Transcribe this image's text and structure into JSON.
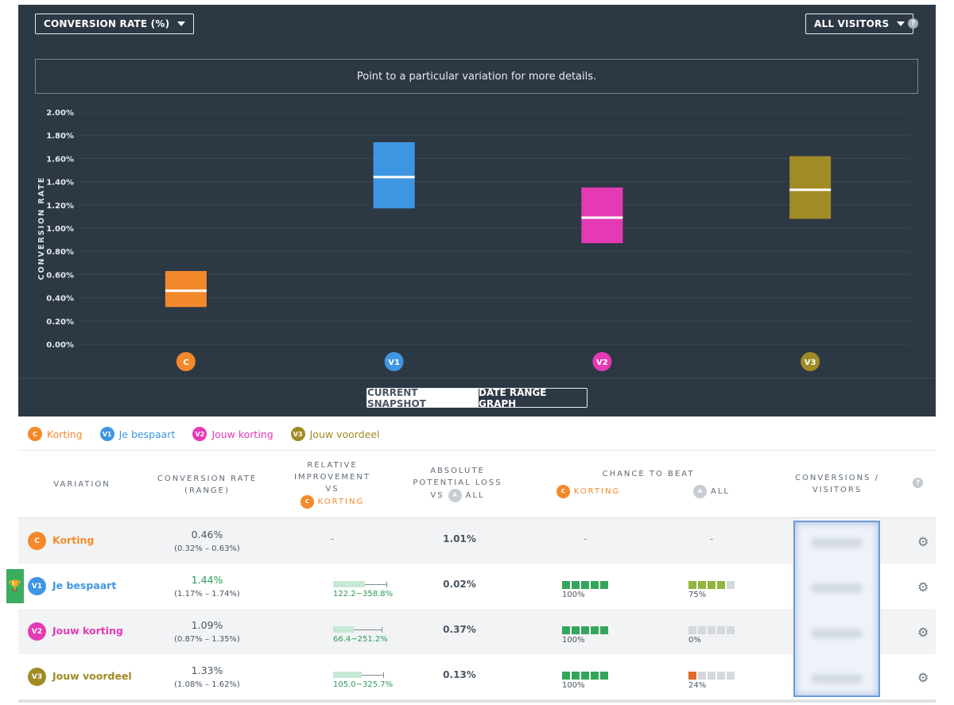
{
  "header": {
    "metric_dropdown": "CONVERSION RATE (%)",
    "segment_dropdown": "ALL VISITORS",
    "help_glyph": "?",
    "info": "Point to a particular variation for more details."
  },
  "chart_data": {
    "type": "range",
    "ylabel": "CONVERSION RATE",
    "ylim": [
      0,
      2.0
    ],
    "yticks": [
      "0.00%",
      "0.20%",
      "0.40%",
      "0.60%",
      "0.80%",
      "1.00%",
      "1.20%",
      "1.40%",
      "1.60%",
      "1.80%",
      "2.00%"
    ],
    "categories": [
      "C",
      "V1",
      "V2",
      "V3"
    ],
    "series": [
      {
        "label": "C",
        "low": 0.32,
        "high": 0.63,
        "mid": 0.46,
        "color": "#f4892b"
      },
      {
        "label": "V1",
        "low": 1.17,
        "high": 1.74,
        "mid": 1.44,
        "color": "#3e96e2"
      },
      {
        "label": "V2",
        "low": 0.87,
        "high": 1.35,
        "mid": 1.09,
        "color": "#e43ab5"
      },
      {
        "label": "V3",
        "low": 1.08,
        "high": 1.62,
        "mid": 1.33,
        "color": "#a08b25"
      }
    ]
  },
  "toggle": {
    "snapshot": "CURRENT SNAPSHOT",
    "date_range": "DATE RANGE GRAPH"
  },
  "legend": [
    {
      "badge": "C",
      "name": "Korting",
      "color": "#f4892b"
    },
    {
      "badge": "V1",
      "name": "Je bespaart",
      "color": "#3e96e2"
    },
    {
      "badge": "V2",
      "name": "Jouw korting",
      "color": "#e43ab5"
    },
    {
      "badge": "V3",
      "name": "Jouw voordeel",
      "color": "#a08b25"
    }
  ],
  "table": {
    "headers": {
      "variation": "VARIATION",
      "conv_rate_1": "CONVERSION RATE",
      "conv_rate_2": "(RANGE)",
      "rel_1": "RELATIVE",
      "rel_2": "IMPROVEMENT",
      "rel_3": "VS",
      "rel_badge": "C",
      "rel_name": "KORTING",
      "loss_1": "ABSOLUTE",
      "loss_2": "POTENTIAL LOSS",
      "loss_3": "VS",
      "loss_badge": "A",
      "loss_all": "ALL",
      "chance": "CHANCE TO BEAT",
      "chance_badge_c": "C",
      "chance_korting": "KORTING",
      "chance_badge_a": "A",
      "chance_all": "ALL",
      "conversions_1": "CONVERSIONS /",
      "conversions_2": "VISITORS",
      "help": "?"
    },
    "rows": [
      {
        "badge": "C",
        "name": "Korting",
        "color": "#f4892b",
        "rate": "0.46%",
        "range": "(0.32% – 0.63%)",
        "rel": "-",
        "loss": "1.01%",
        "beat_c": "-",
        "beat_all": "-"
      },
      {
        "badge": "V1",
        "name": "Je bespaart",
        "color": "#3e96e2",
        "rate": "1.44%",
        "range": "(1.17% – 1.74%)",
        "rel": "122.2~358.8%",
        "loss": "0.02%",
        "beat_c": "100%",
        "beat_all": "75%"
      },
      {
        "badge": "V2",
        "name": "Jouw korting",
        "color": "#e43ab5",
        "rate": "1.09%",
        "range": "(0.87% – 1.35%)",
        "rel": "66.4~251.2%",
        "loss": "0.37%",
        "beat_c": "100%",
        "beat_all": "0%"
      },
      {
        "badge": "V3",
        "name": "Jouw voordeel",
        "color": "#a08b25",
        "rate": "1.33%",
        "range": "(1.08% – 1.62%)",
        "rel": "105.0~325.7%",
        "loss": "0.13%",
        "beat_c": "100%",
        "beat_all": "24%"
      }
    ]
  }
}
